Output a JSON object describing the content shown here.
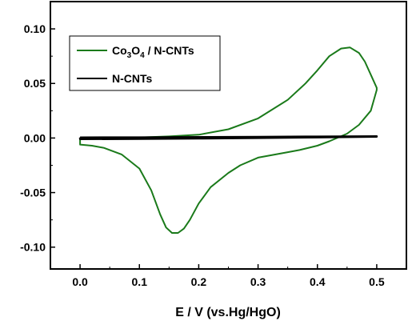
{
  "chart_data": {
    "type": "line",
    "title": "",
    "xlabel": "E / V (vs.Hg/HgO)",
    "ylabel": "",
    "xlim": [
      -0.05,
      0.55
    ],
    "ylim": [
      -0.12,
      0.125
    ],
    "x_ticks": [
      0.0,
      0.1,
      0.2,
      0.3,
      0.4,
      0.5
    ],
    "x_tick_labels": [
      "0.0",
      "0.1",
      "0.2",
      "0.3",
      "0.4",
      "0.5"
    ],
    "y_ticks": [
      -0.1,
      -0.05,
      0.0,
      0.05,
      0.1
    ],
    "y_tick_labels": [
      "-0.10",
      "-0.05",
      "0.00",
      "0.05",
      "0.10"
    ],
    "grid": false,
    "legend_position": "top-left",
    "series": [
      {
        "name": "Co3O4 / N-CNTs",
        "legend_base": "Co",
        "legend_sub1": "3",
        "legend_mid": "O",
        "legend_sub2": "4",
        "legend_rest": " / N-CNTs",
        "color": "#1a7a1a",
        "x": [
          0.0,
          0.05,
          0.1,
          0.15,
          0.2,
          0.25,
          0.3,
          0.35,
          0.38,
          0.4,
          0.42,
          0.44,
          0.455,
          0.47,
          0.48,
          0.49,
          0.5,
          0.5,
          0.49,
          0.47,
          0.45,
          0.42,
          0.4,
          0.37,
          0.35,
          0.3,
          0.27,
          0.25,
          0.22,
          0.2,
          0.185,
          0.175,
          0.165,
          0.155,
          0.145,
          0.135,
          0.12,
          0.1,
          0.07,
          0.04,
          0.02,
          0.0,
          0.0
        ],
        "y": [
          0.0,
          0.0,
          0.0005,
          0.0015,
          0.003,
          0.008,
          0.018,
          0.035,
          0.05,
          0.062,
          0.075,
          0.082,
          0.083,
          0.078,
          0.07,
          0.058,
          0.046,
          0.044,
          0.025,
          0.012,
          0.004,
          -0.003,
          -0.007,
          -0.011,
          -0.013,
          -0.018,
          -0.025,
          -0.032,
          -0.045,
          -0.06,
          -0.075,
          -0.083,
          -0.087,
          -0.087,
          -0.082,
          -0.07,
          -0.048,
          -0.028,
          -0.015,
          -0.009,
          -0.007,
          -0.006,
          0.0
        ]
      },
      {
        "name": "N-CNTs",
        "color": "#000000",
        "x": [
          0.0,
          0.1,
          0.2,
          0.3,
          0.4,
          0.5,
          0.5,
          0.4,
          0.3,
          0.2,
          0.1,
          0.0,
          0.0
        ],
        "y": [
          0.0005,
          0.0006,
          0.0008,
          0.001,
          0.0013,
          0.0016,
          0.0012,
          0.0006,
          0.0,
          -0.0004,
          -0.0008,
          -0.001,
          0.0005
        ]
      }
    ]
  }
}
